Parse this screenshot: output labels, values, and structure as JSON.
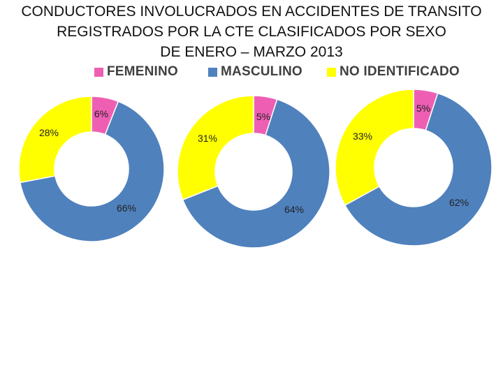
{
  "title": {
    "line1": "CONDUCTORES INVOLUCRADOS EN ACCIDENTES DE TRANSITO",
    "line2": "REGISTRADOS POR LA CTE CLASIFICADOS POR SEXO",
    "line3": "DE ENERO – MARZO 2013"
  },
  "legend": [
    {
      "label": "FEMENINO",
      "color": "#ee5fb4"
    },
    {
      "label": "MASCULINO",
      "color": "#4f81bd"
    },
    {
      "label": "NO IDENTIFICADO",
      "color": "#ffff00"
    }
  ],
  "chart_data": [
    {
      "type": "donut",
      "categories": [
        "FEMENINO",
        "MASCULINO",
        "NO IDENTIFICADO"
      ],
      "values": [
        6,
        66,
        28
      ],
      "labels": [
        "6%",
        "66%",
        "28%"
      ]
    },
    {
      "type": "donut",
      "categories": [
        "FEMENINO",
        "MASCULINO",
        "NO IDENTIFICADO"
      ],
      "values": [
        5,
        64,
        31
      ],
      "labels": [
        "5%",
        "64%",
        "31%"
      ]
    },
    {
      "type": "donut",
      "categories": [
        "FEMENINO",
        "MASCULINO",
        "NO IDENTIFICADO"
      ],
      "values": [
        5,
        62,
        33
      ],
      "labels": [
        "5%",
        "62%",
        "33%"
      ]
    }
  ]
}
